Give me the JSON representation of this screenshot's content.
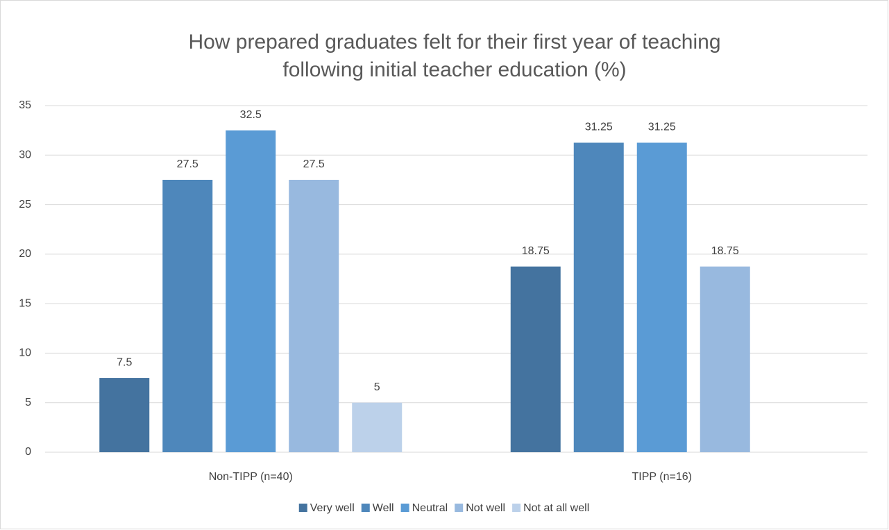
{
  "chart_data": {
    "type": "bar",
    "title": [
      "How prepared graduates felt for their first year of teaching",
      "following initial teacher education (%)"
    ],
    "categories": [
      "Non-TIPP (n=40)",
      "TIPP (n=16)"
    ],
    "series": [
      {
        "name": "Very well",
        "color": "#44739f",
        "values": [
          7.5,
          18.75
        ]
      },
      {
        "name": "Well",
        "color": "#4e87bb",
        "values": [
          27.5,
          31.25
        ]
      },
      {
        "name": "Neutral",
        "color": "#5a9bd5",
        "values": [
          32.5,
          31.25
        ]
      },
      {
        "name": "Not well",
        "color": "#98b9df",
        "values": [
          27.5,
          18.75
        ]
      },
      {
        "name": "Not at all well",
        "color": "#bcd1ea",
        "values": [
          5,
          null
        ]
      }
    ],
    "ylim": [
      0,
      35
    ],
    "yticks": [
      0,
      5,
      10,
      15,
      20,
      25,
      30,
      35
    ],
    "grid": true,
    "legend": "bottom"
  }
}
